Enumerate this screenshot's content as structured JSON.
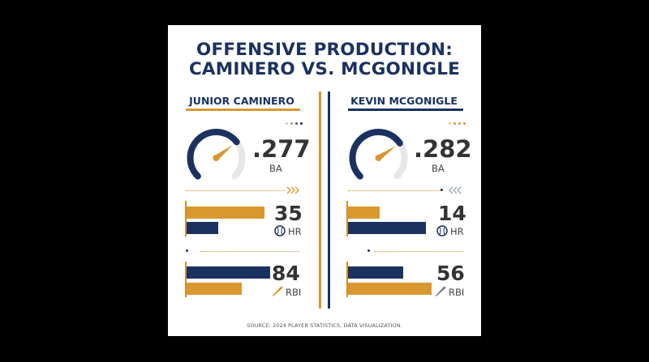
{
  "chart_data": {
    "type": "bar",
    "title": [
      "OFFENSIVE PRODUCTION:",
      "CAMINERO VS. MCGONIGLE"
    ],
    "players": [
      {
        "name": "JUNIOR CAMINERO",
        "ba": ".277",
        "ba_label": "BA",
        "ba_value": 0.277,
        "hr": 35,
        "hr_label": "HR",
        "rbi": 84,
        "rbi_label": "RBI"
      },
      {
        "name": "KEVIN MCGONIGLE",
        "ba": ".282",
        "ba_label": "BA",
        "ba_value": 0.282,
        "hr": 14,
        "hr_label": "HR",
        "rbi": 56,
        "rbi_label": "RBI"
      }
    ],
    "source": "SOURCE: 2024 PLAYER STATISTICS, DATA VISUALIZATION."
  },
  "colors": {
    "navy": "#1b3160",
    "gold": "#d8982f",
    "gray": "#e7e7e7"
  }
}
